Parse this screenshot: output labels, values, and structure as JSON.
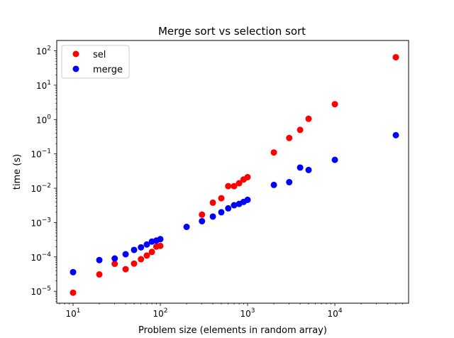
{
  "chart_data": {
    "type": "scatter",
    "title": "Merge sort vs selection sort",
    "xlabel": "Problem size (elements in random array)",
    "ylabel": "time (s)",
    "xscale": "log",
    "yscale": "log",
    "xlim": [
      6.5,
      70000
    ],
    "ylim": [
      4.5e-06,
      200
    ],
    "x_ticks": [
      {
        "base": "10",
        "exp": "1",
        "value": 10
      },
      {
        "base": "10",
        "exp": "2",
        "value": 100
      },
      {
        "base": "10",
        "exp": "3",
        "value": 1000
      },
      {
        "base": "10",
        "exp": "4",
        "value": 10000
      }
    ],
    "y_ticks": [
      {
        "base": "10",
        "exp": "−5",
        "value": 1e-05
      },
      {
        "base": "10",
        "exp": "−4",
        "value": 0.0001
      },
      {
        "base": "10",
        "exp": "−3",
        "value": 0.001
      },
      {
        "base": "10",
        "exp": "−2",
        "value": 0.01
      },
      {
        "base": "10",
        "exp": "−1",
        "value": 0.1
      },
      {
        "base": "10",
        "exp": "0",
        "value": 1
      },
      {
        "base": "10",
        "exp": "1",
        "value": 10
      },
      {
        "base": "10",
        "exp": "2",
        "value": 100
      }
    ],
    "grid": false,
    "legend_position": "top-left",
    "series": [
      {
        "name": "sel",
        "color": "#ff0000",
        "x": [
          10,
          20,
          30,
          40,
          50,
          60,
          70,
          80,
          90,
          100,
          300,
          400,
          500,
          600,
          700,
          800,
          900,
          1000,
          2000,
          3000,
          4000,
          5000,
          10000,
          50000
        ],
        "y": [
          9.1e-06,
          3.1e-05,
          6.3e-05,
          4.4e-05,
          6.4e-05,
          8.6e-05,
          0.00011,
          0.00014,
          0.0002,
          0.00021,
          0.0017,
          0.0038,
          0.0051,
          0.0115,
          0.0115,
          0.014,
          0.018,
          0.021,
          0.11,
          0.29,
          0.5,
          1.05,
          2.8,
          65
        ]
      },
      {
        "name": "merge",
        "color": "#0000ff",
        "x": [
          10,
          20,
          30,
          40,
          50,
          60,
          70,
          80,
          90,
          100,
          200,
          300,
          400,
          500,
          600,
          700,
          800,
          900,
          1000,
          2000,
          3000,
          4000,
          5000,
          10000,
          50000
        ],
        "y": [
          3.6e-05,
          8.1e-05,
          9e-05,
          0.00012,
          0.00016,
          0.00019,
          0.00023,
          0.00028,
          0.0003,
          0.00033,
          0.00075,
          0.0011,
          0.0015,
          0.002,
          0.0026,
          0.0032,
          0.0035,
          0.004,
          0.0046,
          0.0125,
          0.015,
          0.04,
          0.034,
          0.067,
          0.35
        ]
      }
    ]
  }
}
